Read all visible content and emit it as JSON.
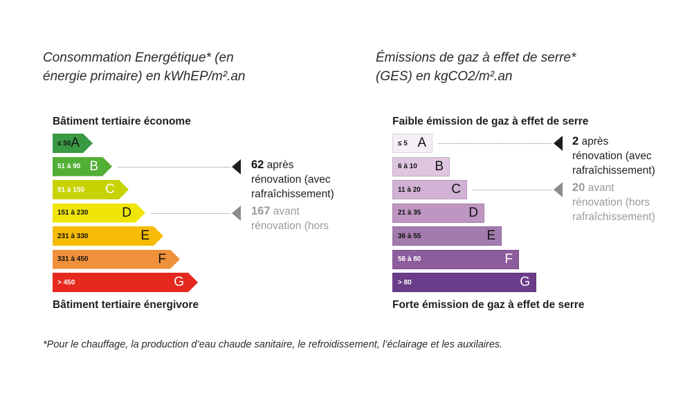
{
  "chart_data": [
    {
      "type": "bar",
      "title": [
        "Consommation Energétique* (en",
        "énergie primaire) en kWhEP/m².an"
      ],
      "top_label": "Bâtiment tertiaire économe",
      "bottom_label": "Bâtiment tertiaire énergivore",
      "classes": [
        {
          "letter": "A",
          "range": "≤ 50",
          "color": "#3a9a43",
          "text_color": "#111111"
        },
        {
          "letter": "B",
          "range": "51 à 90",
          "color": "#52ae34",
          "text_color": "#ffffff"
        },
        {
          "letter": "C",
          "range": "91 à 150",
          "color": "#c7d301",
          "text_color": "#ffffff"
        },
        {
          "letter": "D",
          "range": "151 à 230",
          "color": "#f0e509",
          "text_color": "#111111"
        },
        {
          "letter": "E",
          "range": "231 à 330",
          "color": "#f5bb05",
          "text_color": "#111111"
        },
        {
          "letter": "F",
          "range": "331 à 450",
          "color": "#ef903a",
          "text_color": "#111111"
        },
        {
          "letter": "G",
          "range": "> 450",
          "color": "#e5291f",
          "text_color": "#ffffff"
        }
      ],
      "annotations": [
        {
          "value": "62",
          "class": "B",
          "lines": [
            "après",
            "rénovation (avec",
            "rafraîchissement)"
          ],
          "style": "dark"
        },
        {
          "value": "167",
          "class": "D",
          "lines": [
            "avant",
            "rénovation (hors"
          ],
          "style": "grey"
        }
      ]
    },
    {
      "type": "bar",
      "title": [
        "Émissions de gaz à effet de serre*",
        "(GES) en kgCO2/m².an"
      ],
      "top_label": "Faible émission de gaz à effet de serre",
      "bottom_label": "Forte émission de gaz à effet de serre",
      "classes": [
        {
          "letter": "A",
          "range": "≤ 5",
          "color": "#f5eef6",
          "text_color": "#111111"
        },
        {
          "letter": "B",
          "range": "6 à 10",
          "color": "#dfc6e0",
          "text_color": "#111111"
        },
        {
          "letter": "C",
          "range": "11 à 20",
          "color": "#d1b2d4",
          "text_color": "#111111"
        },
        {
          "letter": "D",
          "range": "21 à 35",
          "color": "#bf95c1",
          "text_color": "#111111"
        },
        {
          "letter": "E",
          "range": "36 à 55",
          "color": "#a47bae",
          "text_color": "#111111"
        },
        {
          "letter": "F",
          "range": "56 à 80",
          "color": "#8d5c9c",
          "text_color": "#ffffff"
        },
        {
          "letter": "G",
          "range": "> 80",
          "color": "#6a3d8a",
          "text_color": "#ffffff"
        }
      ],
      "annotations": [
        {
          "value": "2",
          "class": "A",
          "lines": [
            "après",
            "rénovation (avec",
            "rafraîchissement)"
          ],
          "style": "dark"
        },
        {
          "value": "20",
          "class": "C",
          "lines": [
            "avant",
            "rénovation (hors",
            "rafraîchissement)"
          ],
          "style": "grey"
        }
      ]
    }
  ],
  "footnote": "*Pour le chauffage, la production d’eau chaude sanitaire, le refroidissement, l’éclairage et les auxilaires."
}
